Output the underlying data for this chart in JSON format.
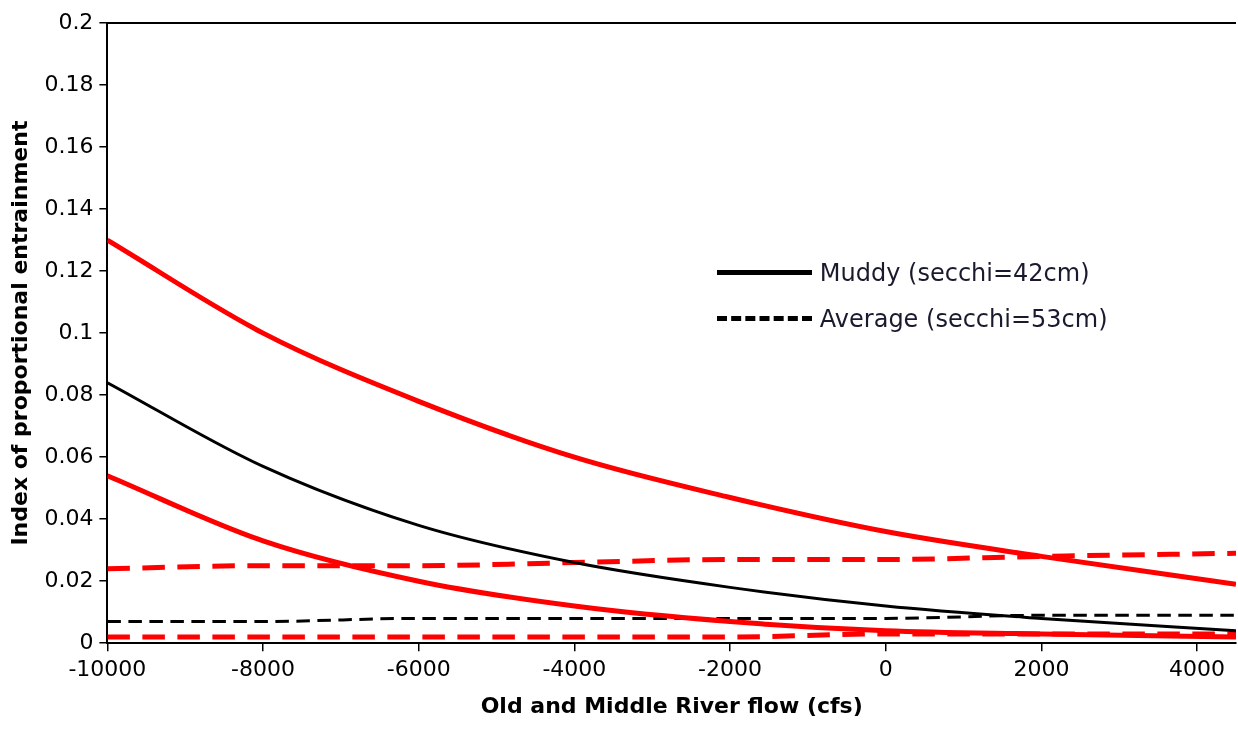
{
  "chart_data": {
    "type": "line",
    "xlabel": "Old and Middle River flow (cfs)",
    "ylabel": "Index of proportional entrainment",
    "x": [
      -10000,
      -8000,
      -6000,
      -4000,
      -2000,
      0,
      2000,
      4500
    ],
    "series": [
      {
        "color": "#ff0000",
        "line_style": "solid",
        "values": [
          0.13,
          0.1,
          0.078,
          0.06,
          0.047,
          0.036,
          0.028,
          0.019
        ]
      },
      {
        "name": "Muddy (secchi=42cm)",
        "color": "#000000",
        "line_style": "solid",
        "values": [
          0.084,
          0.057,
          0.038,
          0.026,
          0.018,
          0.012,
          0.008,
          0.004
        ]
      },
      {
        "color": "#ff0000",
        "line_style": "solid",
        "values": [
          0.054,
          0.033,
          0.02,
          0.012,
          0.007,
          0.004,
          0.003,
          0.002
        ]
      },
      {
        "color": "#ff0000",
        "line_style": "dashed",
        "values": [
          0.024,
          0.025,
          0.025,
          0.026,
          0.027,
          0.027,
          0.028,
          0.029
        ]
      },
      {
        "name": "Average (secchi=53cm)",
        "color": "#000000",
        "line_style": "dashed",
        "values": [
          0.007,
          0.007,
          0.008,
          0.008,
          0.008,
          0.008,
          0.009,
          0.009
        ]
      },
      {
        "color": "#ff0000",
        "line_style": "dashed",
        "values": [
          0.002,
          0.002,
          0.002,
          0.002,
          0.002,
          0.003,
          0.003,
          0.003
        ]
      }
    ],
    "xlim": [
      -10000,
      4500
    ],
    "xticks": [
      -10000,
      -8000,
      -6000,
      -4000,
      -2000,
      0,
      2000,
      4000
    ],
    "ylim": [
      0,
      0.2
    ],
    "yticks": [
      0,
      0.02,
      0.04,
      0.06,
      0.08,
      0.1,
      0.12,
      0.14,
      0.16,
      0.18,
      0.2
    ],
    "grid": false,
    "legend": "right",
    "marker": "none"
  }
}
